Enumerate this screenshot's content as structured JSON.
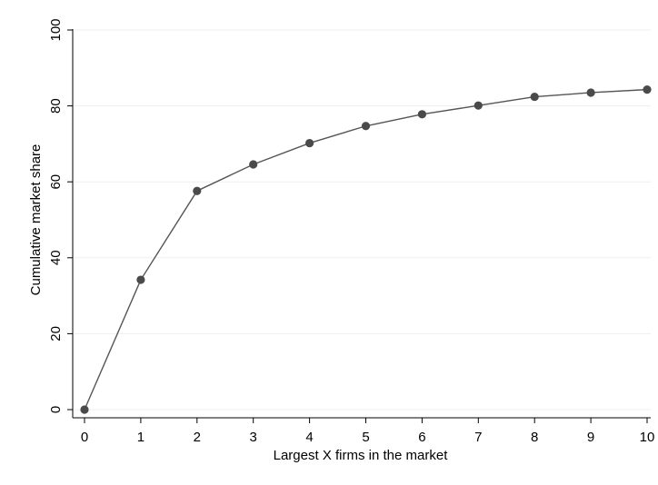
{
  "chart_data": {
    "type": "line",
    "title": "",
    "xlabel": "Largest X firms in the market",
    "ylabel": "Cumulative market share",
    "x": [
      0,
      1,
      2,
      3,
      4,
      5,
      6,
      7,
      8,
      9,
      10
    ],
    "series": [
      {
        "values": [
          0,
          34.2,
          57.6,
          64.6,
          70.2,
          74.7,
          77.8,
          80.1,
          82.4,
          83.5,
          84.3
        ]
      }
    ],
    "xlim": [
      0,
      10
    ],
    "ylim": [
      0,
      100
    ],
    "xticks": [
      "0",
      "1",
      "2",
      "3",
      "4",
      "5",
      "6",
      "7",
      "8",
      "9",
      "10"
    ],
    "yticks": [
      "0",
      "20",
      "40",
      "60",
      "80",
      "100"
    ],
    "grid": true,
    "legend": "none",
    "colors": {
      "line": "#555555",
      "marker": "#4a4a4a",
      "grid": "#efefef",
      "axis": "#000000"
    }
  }
}
